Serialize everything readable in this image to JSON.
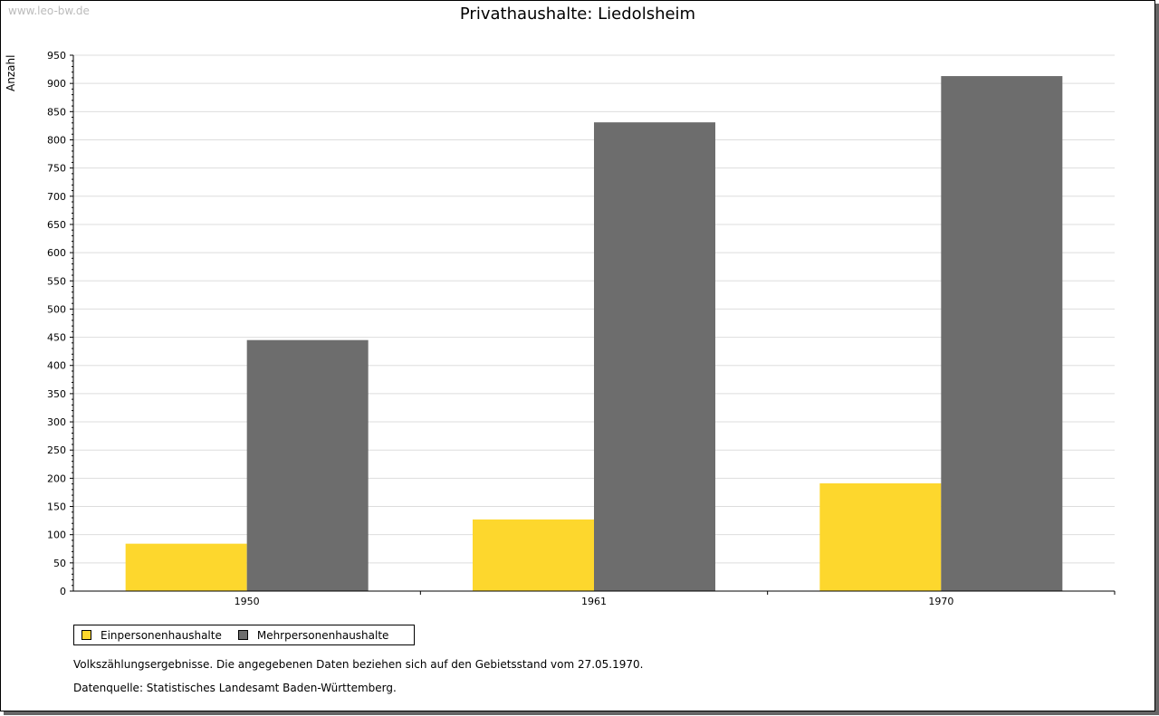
{
  "watermark": "www.leo-bw.de",
  "notes": [
    "Volkszählungsergebnisse. Die angegebenen Daten beziehen sich auf den Gebietsstand vom 27.05.1970.",
    "Datenquelle: Statistisches Landesamt Baden-Württemberg."
  ],
  "chart_data": {
    "type": "bar",
    "title": "Privathaushalte: Liedolsheim",
    "xlabel": "",
    "ylabel": "Anzahl",
    "categories": [
      "1950",
      "1961",
      "1970"
    ],
    "series": [
      {
        "name": "Einpersonenhaushalte",
        "color": "#fdd72d",
        "values": [
          84,
          127,
          191
        ]
      },
      {
        "name": "Mehrpersonenhaushalte",
        "color": "#6d6d6d",
        "values": [
          445,
          831,
          913
        ]
      }
    ],
    "ylim": [
      0,
      950
    ],
    "yticks": [
      0,
      50,
      100,
      150,
      200,
      250,
      300,
      350,
      400,
      450,
      500,
      550,
      600,
      650,
      700,
      750,
      800,
      850,
      900,
      950
    ],
    "grid": true,
    "legend": "bottom-left"
  }
}
